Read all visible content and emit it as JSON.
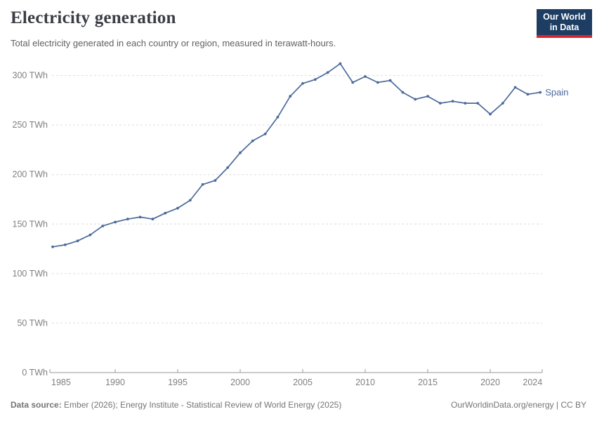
{
  "header": {
    "title": "Electricity generation",
    "subtitle": "Total electricity generated in each country or region, measured in terawatt-hours.",
    "logo": {
      "line1": "Our World",
      "line2": "in Data"
    }
  },
  "chart_data": {
    "type": "line",
    "title": "Electricity generation",
    "unit": "TWh",
    "x_start": 1985,
    "x_end": 2024,
    "years": [
      1985,
      1986,
      1987,
      1988,
      1989,
      1990,
      1991,
      1992,
      1993,
      1994,
      1995,
      1996,
      1997,
      1998,
      1999,
      2000,
      2001,
      2002,
      2003,
      2004,
      2005,
      2006,
      2007,
      2008,
      2009,
      2010,
      2011,
      2012,
      2013,
      2014,
      2015,
      2016,
      2017,
      2018,
      2019,
      2020,
      2021,
      2022,
      2023,
      2024
    ],
    "series": [
      {
        "name": "Spain",
        "values": [
          127,
          129,
          133,
          139,
          148,
          152,
          155,
          157,
          155,
          161,
          166,
          174,
          190,
          194,
          207,
          222,
          234,
          241,
          258,
          279,
          292,
          296,
          303,
          312,
          293,
          299,
          293,
          295,
          283,
          276,
          279,
          272,
          274,
          272,
          272,
          261,
          272,
          288,
          281,
          283
        ]
      }
    ],
    "y_tick_values": [
      0,
      50,
      100,
      150,
      200,
      250,
      300
    ],
    "y_tick_labels": [
      "0 TWh",
      "50 TWh",
      "100 TWh",
      "150 TWh",
      "200 TWh",
      "250 TWh",
      "300 TWh"
    ],
    "x_tick_values": [
      1985,
      1990,
      1995,
      2000,
      2005,
      2010,
      2015,
      2020,
      2024
    ],
    "x_tick_labels": [
      "1985",
      "1990",
      "1995",
      "2000",
      "2005",
      "2010",
      "2015",
      "2020",
      "2024"
    ],
    "ylim": [
      0,
      315
    ],
    "grid": true,
    "legend_position": "end-of-line-label"
  },
  "colors": {
    "line": "#4c6a9c",
    "series_label": "#4c6a9c",
    "grid": "#dedede",
    "axis": "#999999",
    "tick_label": "#808080",
    "logo_bg": "#1d3d63",
    "logo_red": "#d7282f"
  },
  "footer": {
    "source_label": "Data source:",
    "source_text": " Ember (2026); Energy Institute - Statistical Review of World Energy (2025)",
    "right_text": "OurWorldinData.org/energy | CC BY"
  }
}
